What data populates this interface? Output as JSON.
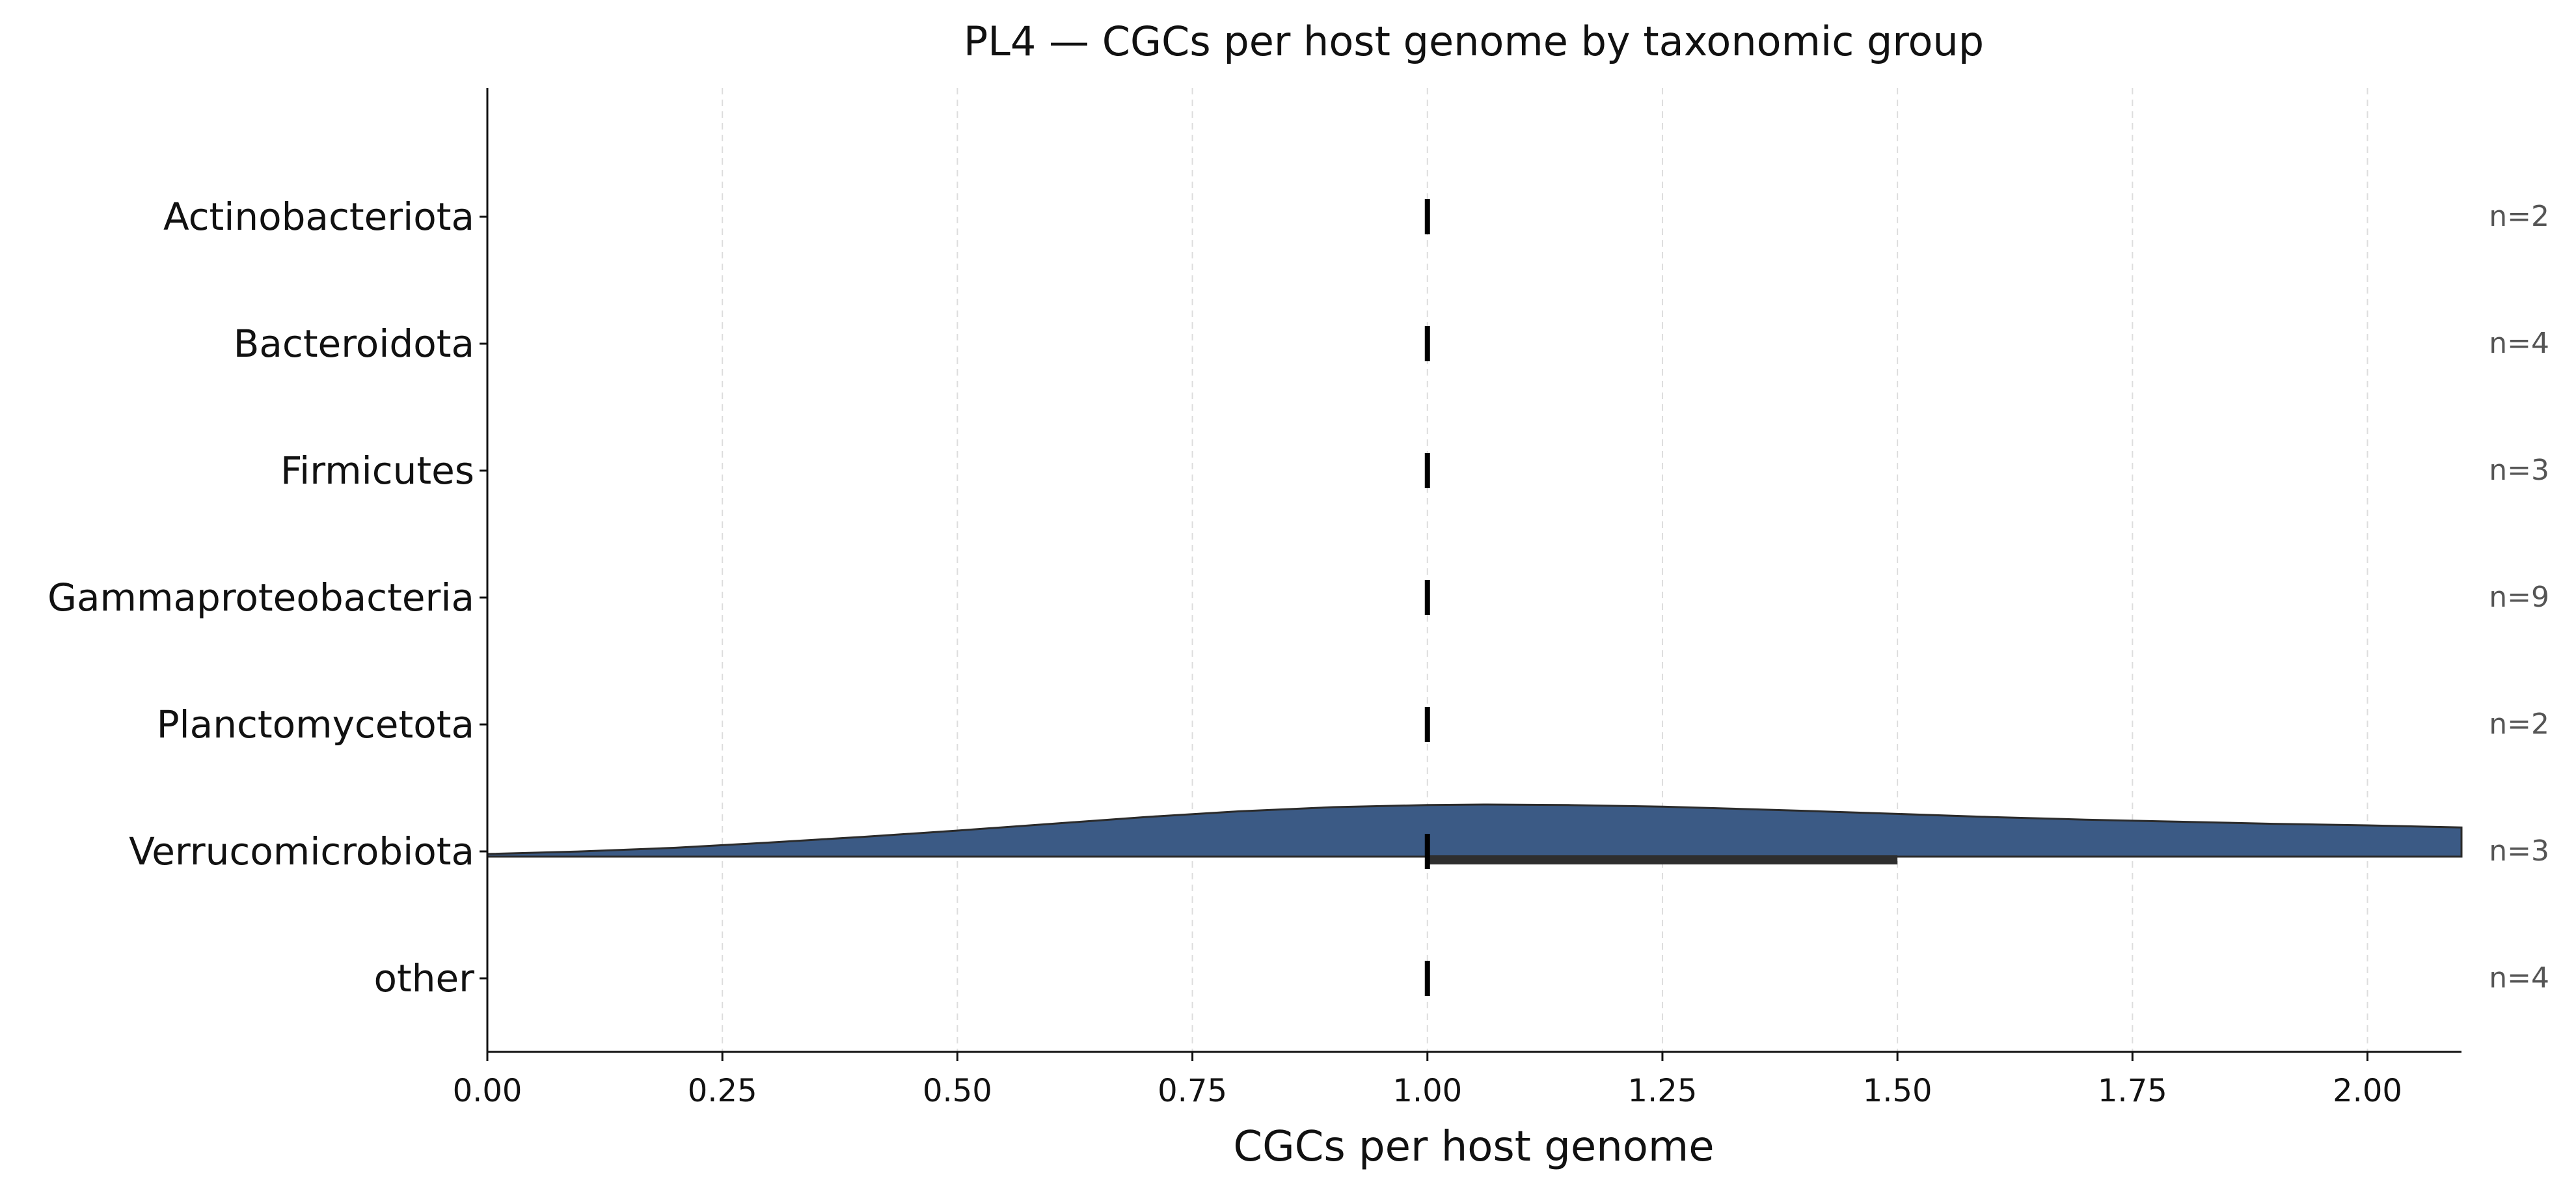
{
  "chart_data": {
    "type": "raincloud",
    "title": "PL4 — CGCs per host genome by taxonomic group",
    "xlabel": "CGCs per host genome",
    "ylabel": "",
    "xlim": [
      0.0,
      2.1
    ],
    "x_ticks": [
      0.0,
      0.25,
      0.5,
      0.75,
      1.0,
      1.25,
      1.5,
      1.75,
      2.0
    ],
    "x_tick_labels": [
      "0.00",
      "0.25",
      "0.50",
      "0.75",
      "1.00",
      "1.25",
      "1.50",
      "1.75",
      "2.00"
    ],
    "grid": "vertical dashed",
    "categories": [
      "Actinobacteriota",
      "Bacteroidota",
      "Firmicutes",
      "Gammaproteobacteria",
      "Planctomycetota",
      "Verrucomicrobiota",
      "other"
    ],
    "n_labels": [
      "n=2",
      "n=4",
      "n=3",
      "n=9",
      "n=2",
      "n=3",
      "n=4"
    ],
    "medians": [
      1.0,
      1.0,
      1.0,
      1.0,
      1.0,
      1.0,
      1.0
    ],
    "iqr": [
      [
        1.0,
        1.0
      ],
      [
        1.0,
        1.0
      ],
      [
        1.0,
        1.0
      ],
      [
        1.0,
        1.0
      ],
      [
        1.0,
        1.0
      ],
      [
        1.0,
        1.5
      ],
      [
        1.0,
        1.0
      ]
    ],
    "density": {
      "category": "Verrucomicrobiota",
      "x": [
        0.0,
        0.1,
        0.2,
        0.3,
        0.4,
        0.5,
        0.6,
        0.7,
        0.8,
        0.9,
        1.0,
        1.06,
        1.15,
        1.25,
        1.4,
        1.5,
        1.6,
        1.7,
        1.8,
        1.9,
        2.0,
        2.1
      ],
      "height": [
        0.05,
        0.1,
        0.17,
        0.27,
        0.38,
        0.5,
        0.63,
        0.76,
        0.87,
        0.95,
        0.99,
        1.0,
        0.99,
        0.96,
        0.88,
        0.82,
        0.76,
        0.71,
        0.67,
        0.63,
        0.6,
        0.56
      ],
      "color": "#3b5a85"
    },
    "colors": {
      "density_fill": "#3b5a85",
      "density_edge": "#2b2b2b",
      "median_mark": "#000000",
      "iqr_bar": "#2e2e2e",
      "grid": "#dddddd",
      "n_label": "#555555"
    }
  }
}
